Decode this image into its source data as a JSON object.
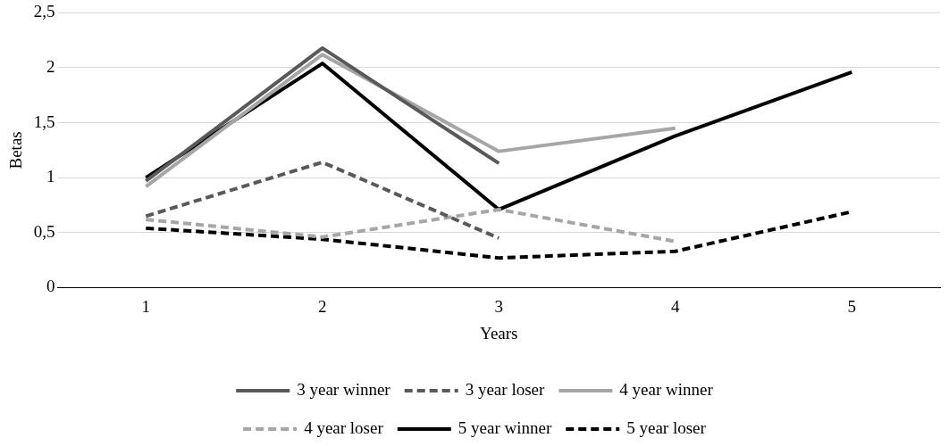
{
  "chart_data": {
    "type": "line",
    "xlabel": "Years",
    "ylabel": "Betas",
    "categories": [
      "1",
      "2",
      "3",
      "4",
      "5"
    ],
    "series": [
      {
        "name": "3 year winner",
        "color": "#595959",
        "line_style": "solid",
        "values": [
          0.97,
          2.18,
          1.13,
          null,
          null
        ]
      },
      {
        "name": "3 year loser",
        "color": "#595959",
        "line_style": "dashed",
        "values": [
          0.65,
          1.14,
          0.45,
          null,
          null
        ]
      },
      {
        "name": "4 year winner",
        "color": "#a6a6a6",
        "line_style": "solid",
        "values": [
          0.92,
          2.12,
          1.24,
          1.45,
          null
        ]
      },
      {
        "name": "4 year loser",
        "color": "#a6a6a6",
        "line_style": "dashed",
        "values": [
          0.62,
          0.46,
          0.71,
          0.42,
          null
        ]
      },
      {
        "name": "5 year winner",
        "color": "#000000",
        "line_style": "solid",
        "values": [
          1.0,
          2.04,
          0.71,
          1.38,
          1.96
        ]
      },
      {
        "name": "5 year loser",
        "color": "#000000",
        "line_style": "dashed",
        "values": [
          0.54,
          0.44,
          0.27,
          0.33,
          0.69
        ]
      }
    ],
    "ylim": [
      0,
      2.5
    ],
    "yticks": [
      0,
      {
        "value": 0.5,
        "label": "0,5"
      },
      1,
      {
        "value": 1.5,
        "label": "1,5"
      },
      2,
      {
        "value": 2.5,
        "label": "2,5"
      }
    ],
    "grid": "y",
    "legend": "bottom",
    "marker": "none"
  }
}
